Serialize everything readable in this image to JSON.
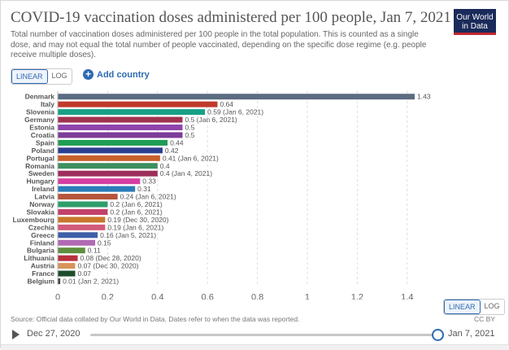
{
  "header": {
    "title": "COVID-19 vaccination doses administered per 100 people, Jan 7, 2021",
    "subtitle": "Total number of vaccination doses administered per 100 people in the total population. This is counted as a single dose, and may not equal the total number of people vaccinated, depending on the specific dose regime (e.g. people receive multiple doses).",
    "logo_line1": "Our World",
    "logo_line2": "in Data"
  },
  "controls": {
    "linear_label": "LINEAR",
    "log_label": "LOG",
    "add_country_label": "Add country"
  },
  "footer": {
    "source": "Source: Official data collated by Our World in Data. Dates refer to when the data was reported.",
    "license": "CC BY"
  },
  "timeline": {
    "start": "Dec 27, 2020",
    "end": "Jan 7, 2021",
    "position": 1.0
  },
  "chart_data": {
    "type": "bar",
    "orientation": "horizontal",
    "xlim": [
      0,
      1.43
    ],
    "xticks": [
      "0",
      "0.2",
      "0.4",
      "0.6",
      "0.8",
      "1",
      "1.2",
      "1.4"
    ],
    "grid": true,
    "items": [
      {
        "country": "Denmark",
        "value": 1.43,
        "label": "1.43",
        "color": "#5b6b80"
      },
      {
        "country": "Italy",
        "value": 0.64,
        "label": "0.64",
        "color": "#c0392b"
      },
      {
        "country": "Slovenia",
        "value": 0.59,
        "label": "0.59 (Jan 6, 2021)",
        "color": "#16a085"
      },
      {
        "country": "Germany",
        "value": 0.5,
        "label": "0.5 (Jan 6, 2021)",
        "color": "#a0324f"
      },
      {
        "country": "Estonia",
        "value": 0.5,
        "label": "0.5",
        "color": "#8e44ad"
      },
      {
        "country": "Croatia",
        "value": 0.5,
        "label": "0.5",
        "color": "#7d3c98"
      },
      {
        "country": "Spain",
        "value": 0.44,
        "label": "0.44",
        "color": "#1f9d55"
      },
      {
        "country": "Poland",
        "value": 0.42,
        "label": "0.42",
        "color": "#2c3e90"
      },
      {
        "country": "Portugal",
        "value": 0.41,
        "label": "0.41 (Jan 6, 2021)",
        "color": "#c8602b"
      },
      {
        "country": "Romania",
        "value": 0.4,
        "label": "0.4",
        "color": "#3d8e5e"
      },
      {
        "country": "Sweden",
        "value": 0.4,
        "label": "0.4 (Jan 4, 2021)",
        "color": "#9c2f5c"
      },
      {
        "country": "Hungary",
        "value": 0.33,
        "label": "0.33",
        "color": "#d63fa1"
      },
      {
        "country": "Ireland",
        "value": 0.31,
        "label": "0.31",
        "color": "#2b7bb9"
      },
      {
        "country": "Latvia",
        "value": 0.24,
        "label": "0.24 (Jan 6, 2021)",
        "color": "#b5553b"
      },
      {
        "country": "Norway",
        "value": 0.2,
        "label": "0.2 (Jan 6, 2021)",
        "color": "#2e9e6b"
      },
      {
        "country": "Slovakia",
        "value": 0.2,
        "label": "0.2 (Jan 6, 2021)",
        "color": "#c2416b"
      },
      {
        "country": "Luxembourg",
        "value": 0.19,
        "label": "0.19 (Dec 30, 2020)",
        "color": "#c9762c"
      },
      {
        "country": "Czechia",
        "value": 0.19,
        "label": "0.19 (Jan 6, 2021)",
        "color": "#d15a7a"
      },
      {
        "country": "Greece",
        "value": 0.16,
        "label": "0.16 (Jan 5, 2021)",
        "color": "#3e5fa8"
      },
      {
        "country": "Finland",
        "value": 0.15,
        "label": "0.15",
        "color": "#b06ab3"
      },
      {
        "country": "Bulgaria",
        "value": 0.11,
        "label": "0.11",
        "color": "#5f8e3e"
      },
      {
        "country": "Lithuania",
        "value": 0.08,
        "label": "0.08 (Dec 28, 2020)",
        "color": "#b8303d"
      },
      {
        "country": "Austria",
        "value": 0.07,
        "label": "0.07 (Dec 30, 2020)",
        "color": "#d9925a"
      },
      {
        "country": "France",
        "value": 0.07,
        "label": "0.07",
        "color": "#1e4d2b"
      },
      {
        "country": "Belgium",
        "value": 0.01,
        "label": "0.01 (Jan 2, 2021)",
        "color": "#444444"
      }
    ]
  }
}
